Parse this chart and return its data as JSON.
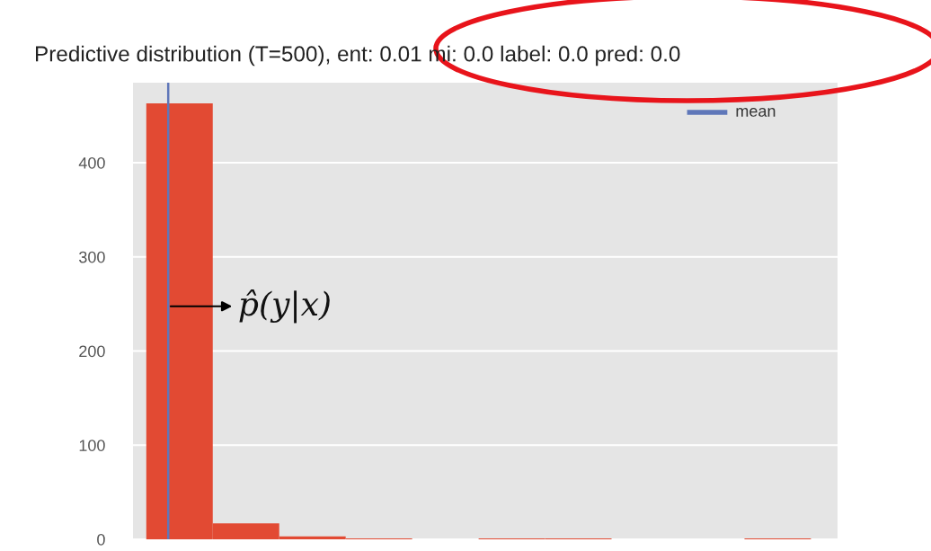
{
  "chart_data": {
    "type": "bar",
    "title": "Predictive distribution (T=500), ent: 0.01 mi: 0.0 label: 0.0 pred: 0.0",
    "categories": [
      null,
      null,
      null,
      null,
      null,
      null,
      null,
      null,
      null,
      null
    ],
    "values": [
      463,
      17,
      3,
      1,
      0,
      1,
      1,
      0,
      0,
      1
    ],
    "color": "#e24a33",
    "ylim": [
      0,
      485
    ],
    "yticks": [
      0,
      100,
      200,
      300,
      400
    ],
    "tick_labels": "y",
    "grid": "y",
    "annotations": [
      "p̂(y|x)",
      "mean"
    ]
  }
}
